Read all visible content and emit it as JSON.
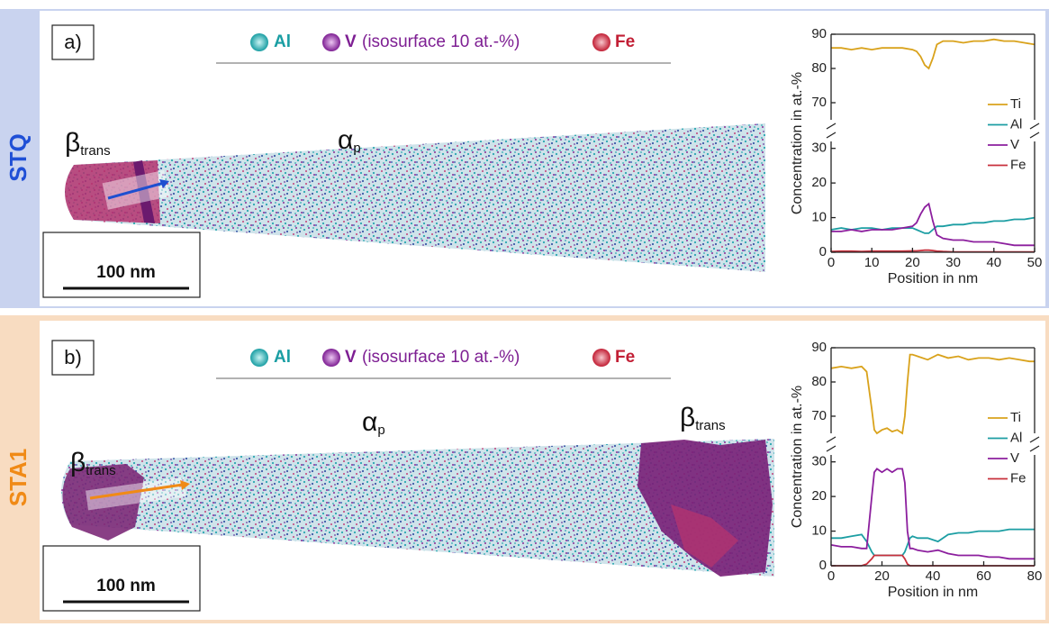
{
  "panels": [
    {
      "label": "a)",
      "condition": "STQ",
      "legend": {
        "al": "Al",
        "v": "V",
        "v_note": "(isosurface 10 at.-%)",
        "fe": "Fe"
      },
      "phases": [
        {
          "symbol": "β",
          "subscript": "trans"
        },
        {
          "symbol": "α",
          "subscript": "p"
        }
      ],
      "scale_bar": "100 nm"
    },
    {
      "label": "b)",
      "condition": "STA1",
      "legend": {
        "al": "Al",
        "v": "V",
        "v_note": "(isosurface 10 at.-%)",
        "fe": "Fe"
      },
      "phases": [
        {
          "symbol": "β",
          "subscript": "trans"
        },
        {
          "symbol": "α",
          "subscript": "p"
        },
        {
          "symbol": "β",
          "subscript": "trans"
        }
      ],
      "scale_bar": "100 nm"
    }
  ],
  "chart_data": [
    {
      "type": "line",
      "xlabel": "Position in nm",
      "ylabel": "Concentration in at.-%",
      "x": [
        0,
        2.5,
        5,
        7.5,
        10,
        12.5,
        15,
        17.5,
        20,
        21,
        22,
        23,
        24,
        25,
        26,
        27.5,
        30,
        32.5,
        35,
        37.5,
        40,
        42.5,
        45,
        47.5,
        50
      ],
      "xlim": [
        0,
        50
      ],
      "xticks": [
        0,
        10,
        20,
        30,
        40,
        50
      ],
      "ylim": [
        0,
        32
      ],
      "yticks": [
        0,
        10,
        20,
        30
      ],
      "ylim_upper": [
        65,
        90
      ],
      "yticks_upper": [
        70,
        80,
        90
      ],
      "legend": "right",
      "series": [
        {
          "name": "Ti",
          "color": "#d9a21b",
          "axis": "upper",
          "values": [
            86,
            86,
            85.5,
            86,
            85.5,
            86,
            86,
            86,
            85.5,
            85,
            83.5,
            81,
            80,
            83,
            87,
            88,
            88,
            87.5,
            88,
            88,
            88.5,
            88,
            88,
            87.5,
            87
          ]
        },
        {
          "name": "Al",
          "color": "#1c9ea3",
          "values": [
            6.5,
            7,
            6.5,
            7,
            7,
            6.5,
            7,
            7,
            7,
            6.5,
            6,
            5.5,
            5.5,
            6.5,
            7.5,
            7.5,
            8,
            8,
            8.5,
            8.5,
            9,
            9,
            9.5,
            9.5,
            10
          ]
        },
        {
          "name": "V",
          "color": "#8c1f9e",
          "values": [
            6,
            6,
            6.5,
            6,
            6.5,
            6.5,
            6.5,
            7,
            7.5,
            8.5,
            11,
            13,
            14,
            9,
            5,
            4,
            3.5,
            3.5,
            3,
            3,
            3,
            2.5,
            2,
            2,
            2
          ]
        },
        {
          "name": "Fe",
          "color": "#c8303c",
          "values": [
            0.2,
            0.3,
            0.3,
            0.2,
            0.3,
            0.3,
            0.3,
            0.3,
            0.4,
            0.4,
            0.5,
            0.6,
            0.6,
            0.5,
            0.3,
            0.2,
            0.1,
            0.1,
            0.1,
            0.1,
            0.1,
            0.1,
            0.1,
            0.1,
            0.1
          ]
        }
      ]
    },
    {
      "type": "line",
      "xlabel": "Position in nm",
      "ylabel": "Concentration in at.-%",
      "x": [
        0,
        4,
        8,
        12,
        14,
        16,
        17,
        18,
        20,
        22,
        24,
        26,
        28,
        29,
        30,
        31,
        32,
        34,
        38,
        42,
        46,
        50,
        54,
        58,
        62,
        66,
        70,
        74,
        78,
        80
      ],
      "xlim": [
        0,
        80
      ],
      "xticks": [
        0,
        20,
        40,
        60,
        80
      ],
      "ylim": [
        0,
        32
      ],
      "yticks": [
        0,
        10,
        20,
        30
      ],
      "ylim_upper": [
        65,
        90
      ],
      "yticks_upper": [
        70,
        80,
        90
      ],
      "legend": "right",
      "series": [
        {
          "name": "Ti",
          "color": "#d9a21b",
          "axis": "upper",
          "values": [
            84,
            84.5,
            84,
            84.5,
            83,
            72,
            66,
            65,
            66,
            66.5,
            65.5,
            66,
            65,
            70,
            80,
            88,
            88,
            87.5,
            86.5,
            88,
            87,
            87.5,
            86.5,
            87,
            87,
            86.5,
            87,
            86.5,
            86,
            86
          ]
        },
        {
          "name": "Al",
          "color": "#1c9ea3",
          "values": [
            8,
            8,
            8.5,
            9,
            7,
            4,
            3,
            3,
            3,
            3,
            3,
            3,
            3,
            4,
            6,
            8,
            8.5,
            8,
            8,
            7,
            9,
            9.5,
            9.5,
            10,
            10,
            10,
            10.5,
            10.5,
            10.5,
            10.5
          ]
        },
        {
          "name": "V",
          "color": "#8c1f9e",
          "values": [
            6,
            5.5,
            5.5,
            5,
            5,
            20,
            27,
            28,
            27,
            28,
            27,
            28,
            28,
            24,
            10,
            5,
            5,
            4.5,
            4,
            4.5,
            3.5,
            3,
            3,
            3,
            2.5,
            2.5,
            2,
            2,
            2,
            2
          ]
        },
        {
          "name": "Fe",
          "color": "#c8303c",
          "values": [
            0,
            0,
            0,
            0,
            0.5,
            2,
            3,
            3,
            3,
            3,
            3,
            3,
            3,
            2,
            0.5,
            0,
            0,
            0,
            0,
            0,
            0,
            0,
            0,
            0,
            0,
            0,
            0,
            0,
            0,
            0
          ]
        }
      ]
    }
  ]
}
